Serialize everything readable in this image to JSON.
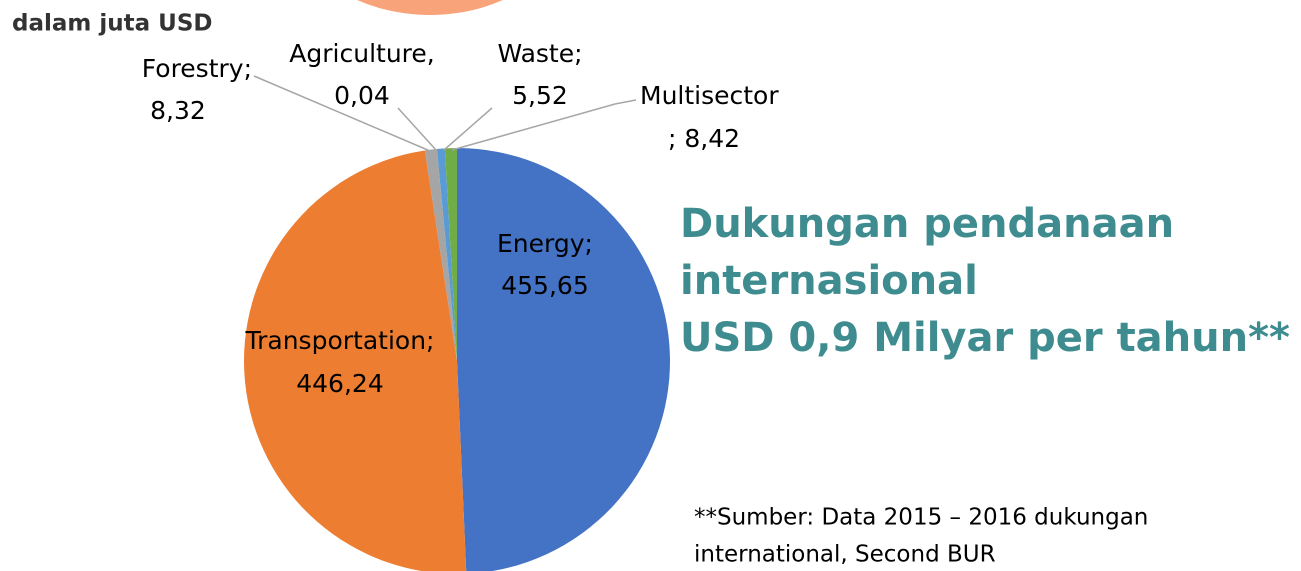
{
  "chart_data": {
    "type": "pie",
    "subtitle": "dalam juta USD",
    "categories": [
      "Energy;",
      "Transportation;",
      "Forestry;",
      "Agriculture,",
      "Waste;",
      "Multisector"
    ],
    "values": [
      455.65,
      446.24,
      8.32,
      0.04,
      5.52,
      8.42
    ],
    "value_labels": [
      "455,65",
      "446,24",
      "8,32",
      "0,04",
      "5,52",
      "; 8,42"
    ],
    "colors": [
      "#4472c4",
      "#ed7d31",
      "#a5a5a5",
      "#ffc000",
      "#5b9bd5",
      "#70ad47"
    ],
    "annotations": [
      "Dukungan pendanaan",
      "internasional",
      "USD 0,9 Milyar per tahun**"
    ],
    "note": [
      "**Sumber: Data 2015 – 2016 dukungan",
      "international, Second BUR"
    ]
  }
}
